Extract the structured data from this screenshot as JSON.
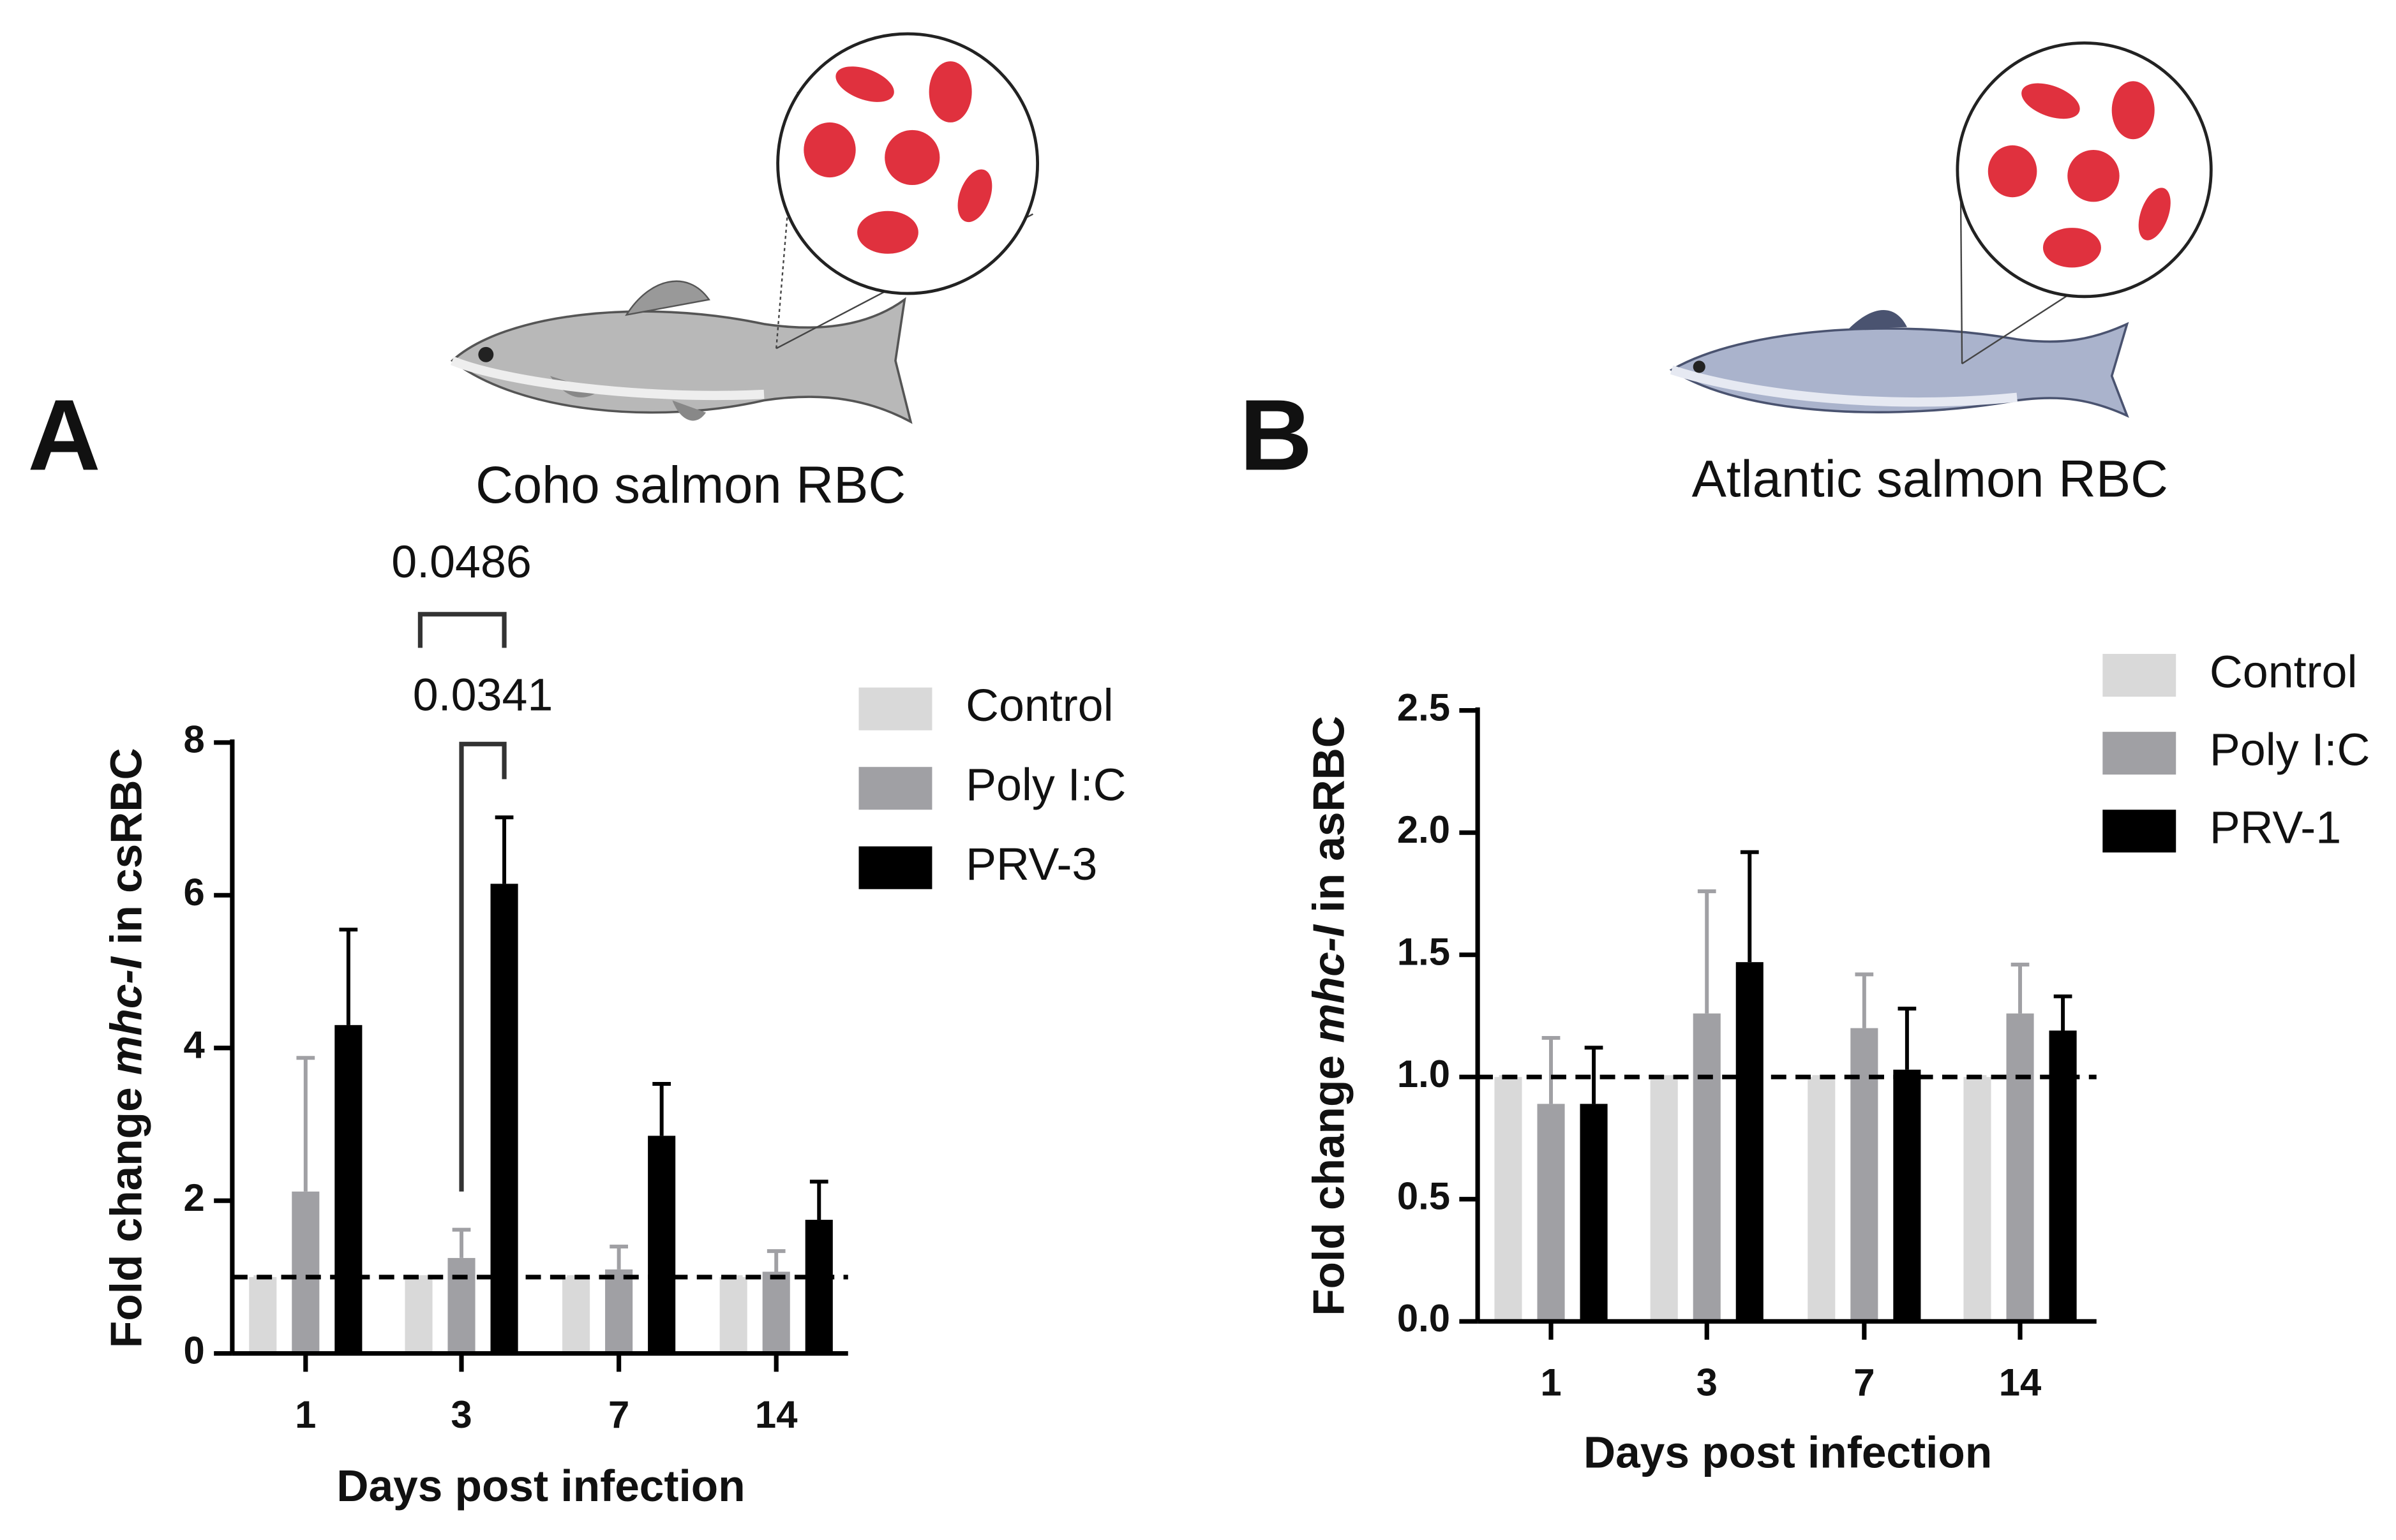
{
  "chart_data": [
    {
      "type": "bar",
      "panel": "A",
      "title": "Coho salmon RBC",
      "y_label": [
        "Fold change",
        "mhc-I",
        "in csRBC"
      ],
      "x_label": "Days post infection",
      "categories": [
        "1",
        "3",
        "7",
        "14"
      ],
      "series": [
        {
          "name": "Control",
          "color": "#d9d9d9",
          "values": [
            1,
            1,
            1,
            1
          ],
          "errors": [
            0,
            0,
            0,
            0
          ]
        },
        {
          "name": "Poly I:C",
          "color": "#a0a0a4",
          "values": [
            2.12,
            1.25,
            1.1,
            1.07
          ],
          "errors": [
            1.75,
            0.37,
            0.3,
            0.27
          ]
        },
        {
          "name": "PRV-3",
          "color": "#000000",
          "values": [
            4.3,
            6.15,
            2.85,
            1.75
          ],
          "errors": [
            1.25,
            0.87,
            0.68,
            0.5
          ]
        }
      ],
      "ylim": [
        0,
        8
      ],
      "yticks": [
        0,
        2,
        4,
        6,
        8
      ],
      "ref_line": 1,
      "annotations": [
        "0.0486",
        "0.0341"
      ]
    },
    {
      "type": "bar",
      "panel": "B",
      "title": "Atlantic salmon RBC",
      "y_label": [
        "Fold change",
        "mhc-I",
        "in asRBC"
      ],
      "x_label": "Days post infection",
      "categories": [
        "1",
        "3",
        "7",
        "14"
      ],
      "series": [
        {
          "name": "Control",
          "color": "#d9d9d9",
          "values": [
            1,
            1,
            1,
            1
          ],
          "errors": [
            0,
            0,
            0,
            0
          ]
        },
        {
          "name": "Poly I:C",
          "color": "#a0a0a4",
          "values": [
            0.89,
            1.26,
            1.2,
            1.26
          ],
          "errors": [
            0.27,
            0.5,
            0.22,
            0.2
          ]
        },
        {
          "name": "PRV-1",
          "color": "#000000",
          "values": [
            0.89,
            1.47,
            1.03,
            1.19
          ],
          "errors": [
            0.23,
            0.45,
            0.25,
            0.14
          ]
        }
      ],
      "ylim": [
        0,
        2.5
      ],
      "yticks": [
        {
          "value": 0,
          "label": "0.0"
        },
        0.5,
        {
          "value": 1,
          "label": "1.0"
        },
        1.5,
        {
          "value": 2,
          "label": "2.0"
        },
        2.5
      ],
      "ref_line": 1
    }
  ]
}
